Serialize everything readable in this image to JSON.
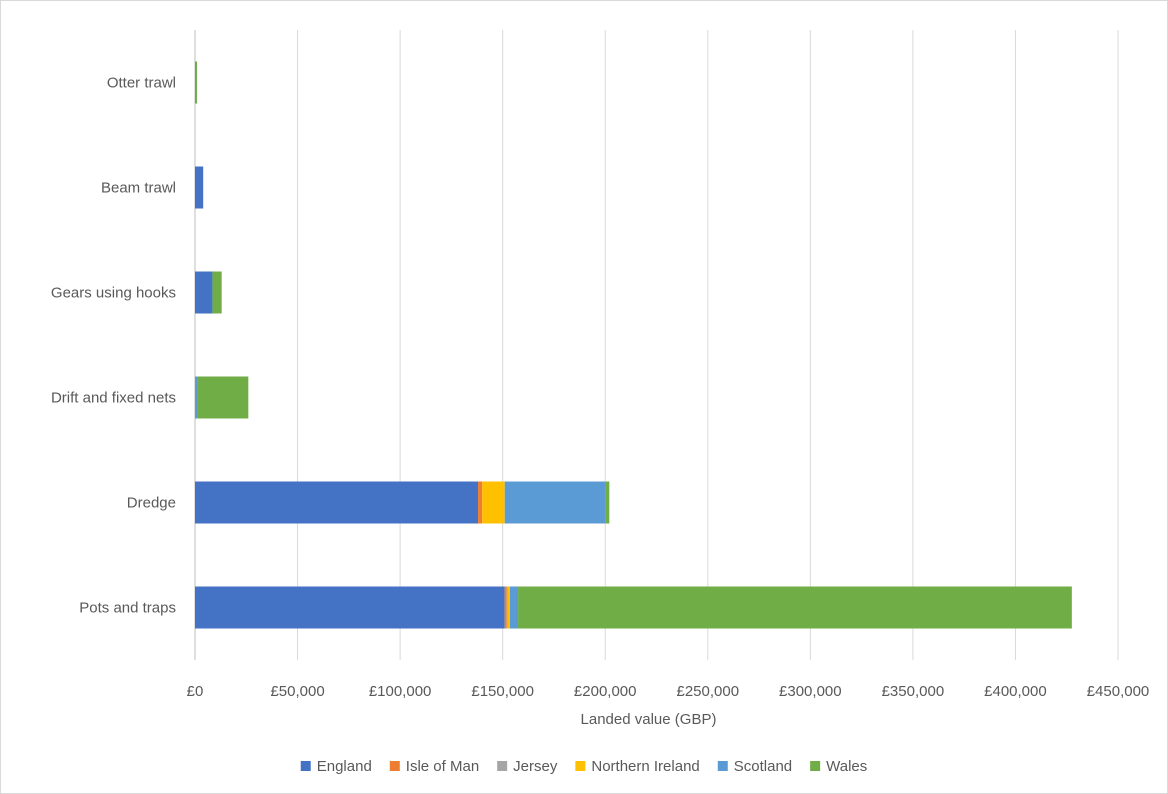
{
  "chart_data": {
    "type": "bar",
    "orientation": "horizontal",
    "stacked": true,
    "categories": [
      "Otter trawl",
      "Beam trawl",
      "Gears using hooks",
      "Drift and fixed nets",
      "Dredge",
      "Pots and traps"
    ],
    "series": [
      {
        "name": "England",
        "color": "#4472C4",
        "values": [
          0,
          4000,
          8500,
          0,
          138000,
          151000
        ]
      },
      {
        "name": "Isle of Man",
        "color": "#ED7D31",
        "values": [
          0,
          0,
          0,
          0,
          2000,
          1000
        ]
      },
      {
        "name": "Jersey",
        "color": "#A5A5A5",
        "values": [
          0,
          0,
          0,
          0,
          0,
          500
        ]
      },
      {
        "name": "Northern Ireland",
        "color": "#FFC000",
        "values": [
          0,
          0,
          0,
          0,
          11000,
          1000
        ]
      },
      {
        "name": "Scotland",
        "color": "#5B9BD5",
        "values": [
          0,
          0,
          0,
          1000,
          49000,
          4000
        ]
      },
      {
        "name": "Wales",
        "color": "#70AD47",
        "values": [
          1000,
          0,
          4500,
          25000,
          2000,
          270000
        ]
      }
    ],
    "xlabel": "Landed value (GBP)",
    "xlim": [
      0,
      450000
    ],
    "x_ticks": [
      0,
      50000,
      100000,
      150000,
      200000,
      250000,
      300000,
      350000,
      400000,
      450000
    ],
    "x_tick_labels": [
      "£0",
      "£50,000",
      "£100,000",
      "£150,000",
      "£200,000",
      "£250,000",
      "£300,000",
      "£350,000",
      "£400,000",
      "£450,000"
    ],
    "grid": true,
    "legend_position": "bottom"
  }
}
